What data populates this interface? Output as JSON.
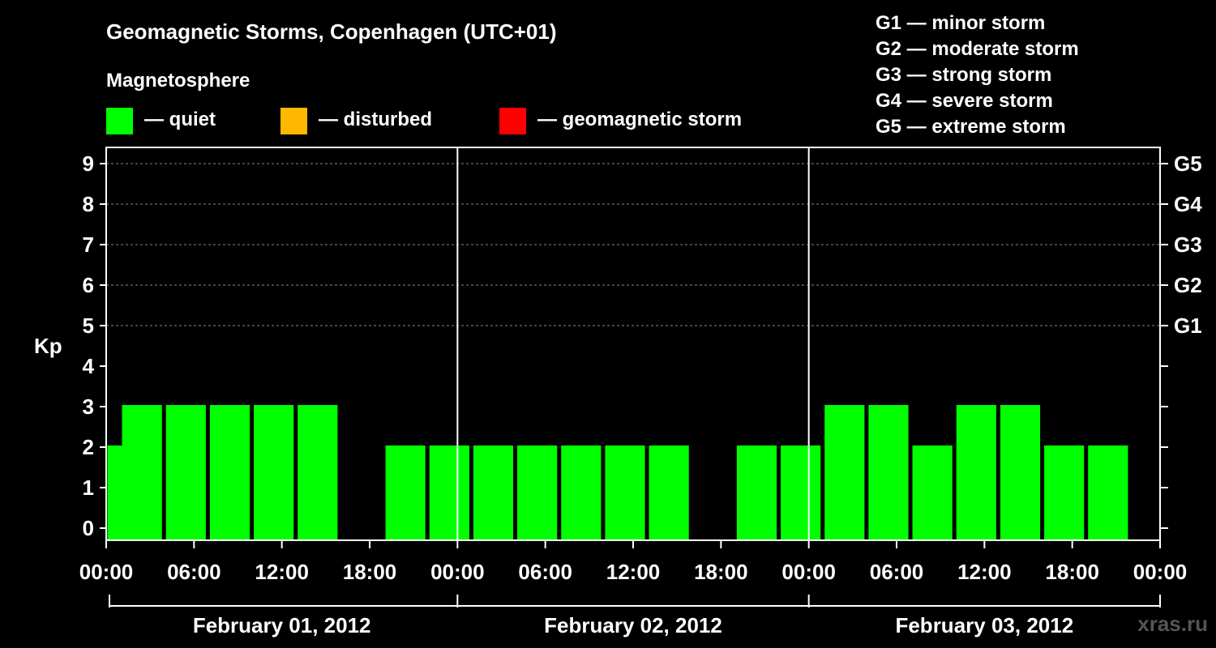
{
  "title": "Geomagnetic Storms, Copenhagen (UTC+01)",
  "subtitle": "Magnetosphere",
  "legend": [
    {
      "label": "— quiet",
      "color": "#00ff00"
    },
    {
      "label": "— disturbed",
      "color": "#ffb800"
    },
    {
      "label": "— geomagnetic storm",
      "color": "#ff0000"
    }
  ],
  "g_scale": [
    "G1 — minor storm",
    "G2 — moderate storm",
    "G3 — strong storm",
    "G4 — severe storm",
    "G5 — extreme storm"
  ],
  "watermark": "xras.ru",
  "chart_data": {
    "type": "bar",
    "ylabel": "Kp",
    "ylim": [
      0,
      9
    ],
    "yticks": [
      0,
      1,
      2,
      3,
      4,
      5,
      6,
      7,
      8,
      9
    ],
    "right_axis": [
      {
        "kp": 5,
        "label": "G1"
      },
      {
        "kp": 6,
        "label": "G2"
      },
      {
        "kp": 7,
        "label": "G3"
      },
      {
        "kp": 8,
        "label": "G4"
      },
      {
        "kp": 9,
        "label": "G5"
      }
    ],
    "x_tick_labels": [
      "00:00",
      "06:00",
      "12:00",
      "18:00",
      "00:00",
      "06:00",
      "12:00",
      "18:00",
      "00:00",
      "06:00",
      "12:00",
      "18:00",
      "00:00"
    ],
    "days": [
      "February 01, 2012",
      "February 02, 2012",
      "February 03, 2012"
    ],
    "interval_hours": 3,
    "bar_color": "#00ff00",
    "bars": [
      {
        "start_hour": 0,
        "kp": 1
      },
      {
        "start_hour": 1,
        "kp": 2
      },
      {
        "start_hour": 4,
        "kp": 2
      },
      {
        "start_hour": 7,
        "kp": 2
      },
      {
        "start_hour": 10,
        "kp": 2
      },
      {
        "start_hour": 13,
        "kp": 2
      },
      {
        "start_hour": 19,
        "kp": 1
      },
      {
        "start_hour": 22,
        "kp": 1
      },
      {
        "start_hour": 25,
        "kp": 1
      },
      {
        "start_hour": 28,
        "kp": 1
      },
      {
        "start_hour": 31,
        "kp": 1
      },
      {
        "start_hour": 34,
        "kp": 1
      },
      {
        "start_hour": 37,
        "kp": 1
      },
      {
        "start_hour": 43,
        "kp": 1
      },
      {
        "start_hour": 46,
        "kp": 1
      },
      {
        "start_hour": 49,
        "kp": 2
      },
      {
        "start_hour": 52,
        "kp": 2
      },
      {
        "start_hour": 55,
        "kp": 1
      },
      {
        "start_hour": 58,
        "kp": 2
      },
      {
        "start_hour": 61,
        "kp": 2
      },
      {
        "start_hour": 64,
        "kp": 1
      },
      {
        "start_hour": 67,
        "kp": 1
      }
    ]
  }
}
